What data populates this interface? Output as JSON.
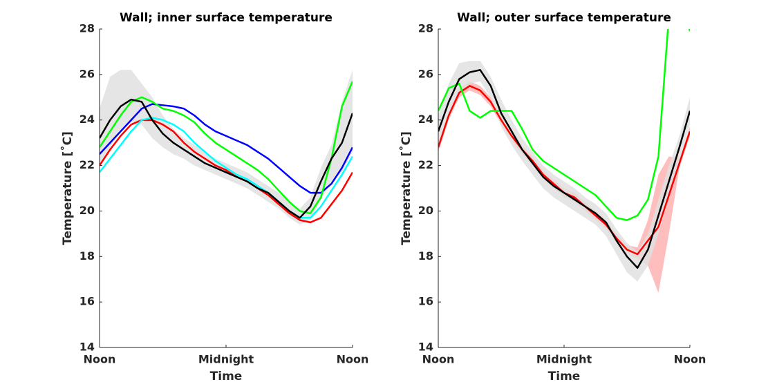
{
  "chart_data": [
    {
      "type": "line",
      "title": "Wall; inner surface temperature",
      "xlabel": "Time",
      "ylabel": "Temperature [˚C]",
      "x": [
        0,
        1,
        2,
        3,
        4,
        5,
        6,
        7,
        8,
        9,
        10,
        11,
        12,
        13,
        14,
        15,
        16,
        17,
        18,
        19,
        20,
        21,
        22,
        23,
        24
      ],
      "xlim": [
        0,
        24
      ],
      "xticks": [
        {
          "value": 0,
          "label": "Noon"
        },
        {
          "value": 12,
          "label": "Midnight"
        },
        {
          "value": 24,
          "label": "Noon"
        }
      ],
      "ylim": [
        14,
        28
      ],
      "yticks": [
        14,
        16,
        18,
        20,
        22,
        24,
        26,
        28
      ],
      "series": [
        {
          "color": "#ff0000",
          "values": [
            22.0,
            22.7,
            23.3,
            23.8,
            24.0,
            24.0,
            23.8,
            23.5,
            23.0,
            22.6,
            22.3,
            22.0,
            21.8,
            21.5,
            21.3,
            21.0,
            20.7,
            20.3,
            19.9,
            19.6,
            19.5,
            19.7,
            20.3,
            20.9,
            21.7
          ]
        },
        {
          "color": "#00ffff",
          "values": [
            21.7,
            22.3,
            22.9,
            23.5,
            24.0,
            24.1,
            24.0,
            23.8,
            23.5,
            23.0,
            22.6,
            22.2,
            21.9,
            21.6,
            21.4,
            21.1,
            20.8,
            20.4,
            20.0,
            19.7,
            19.7,
            20.2,
            20.9,
            21.6,
            22.4
          ]
        },
        {
          "color": "#0000ff",
          "values": [
            22.5,
            23.0,
            23.5,
            24.0,
            24.5,
            24.7,
            24.65,
            24.6,
            24.5,
            24.2,
            23.8,
            23.5,
            23.3,
            23.1,
            22.9,
            22.6,
            22.3,
            21.9,
            21.5,
            21.1,
            20.8,
            20.8,
            21.2,
            21.9,
            22.8
          ]
        },
        {
          "color": "#00ff00",
          "values": [
            22.8,
            23.5,
            24.2,
            24.8,
            25.0,
            24.8,
            24.5,
            24.4,
            24.2,
            23.9,
            23.4,
            23.0,
            22.7,
            22.4,
            22.1,
            21.8,
            21.4,
            20.9,
            20.4,
            20.0,
            19.9,
            20.6,
            22.3,
            24.6,
            25.7
          ]
        },
        {
          "color": "#000000",
          "band_color": "#e0e0e0",
          "upper": [
            24.5,
            25.9,
            26.2,
            26.2,
            25.6,
            25.0,
            24.2,
            23.6,
            23.2,
            22.9,
            22.6,
            22.3,
            22.1,
            21.9,
            21.7,
            21.4,
            21.1,
            20.8,
            20.4,
            20.1,
            20.6,
            21.9,
            22.9,
            24.8,
            26.2
          ],
          "lower": [
            22.0,
            22.8,
            23.5,
            23.9,
            23.8,
            23.2,
            22.8,
            22.5,
            22.3,
            22.0,
            21.8,
            21.6,
            21.4,
            21.2,
            21.0,
            20.7,
            20.4,
            20.1,
            19.7,
            19.4,
            19.6,
            20.5,
            21.3,
            21.7,
            22.6
          ],
          "values": [
            23.2,
            24.0,
            24.6,
            24.9,
            24.8,
            24.0,
            23.4,
            23.0,
            22.7,
            22.4,
            22.1,
            21.9,
            21.7,
            21.5,
            21.3,
            21.0,
            20.8,
            20.4,
            20.0,
            19.7,
            20.2,
            21.3,
            22.3,
            23.0,
            24.3
          ]
        }
      ]
    },
    {
      "type": "line",
      "title": "Wall; outer surface temperature",
      "xlabel": "Time",
      "ylabel": "Temperature [˚C]",
      "x": [
        0,
        1,
        2,
        3,
        4,
        5,
        6,
        7,
        8,
        9,
        10,
        11,
        12,
        13,
        14,
        15,
        16,
        17,
        18,
        19,
        20,
        21,
        22,
        23,
        24
      ],
      "xlim": [
        0,
        24
      ],
      "xticks": [
        {
          "value": 0,
          "label": "Noon"
        },
        {
          "value": 12,
          "label": "Midnight"
        },
        {
          "value": 24,
          "label": "Noon"
        }
      ],
      "ylim": [
        14,
        28
      ],
      "yticks": [
        14,
        16,
        18,
        20,
        22,
        24,
        26,
        28
      ],
      "series": [
        {
          "color": "#ff0000",
          "band_color": "#ffb3b3",
          "upper": [
            23.0,
            24.4,
            25.4,
            25.7,
            25.5,
            25.0,
            24.2,
            23.5,
            22.9,
            22.4,
            21.8,
            21.4,
            21.0,
            20.8,
            20.4,
            20.0,
            19.6,
            19.0,
            18.5,
            18.4,
            19.6,
            21.6,
            22.4,
            22.3,
            23.7
          ],
          "lower": [
            22.6,
            24.0,
            25.0,
            25.3,
            25.1,
            24.6,
            23.8,
            23.1,
            22.5,
            22.0,
            21.4,
            21.0,
            20.6,
            20.4,
            20.0,
            19.6,
            19.2,
            18.6,
            18.1,
            17.9,
            17.6,
            16.4,
            19.0,
            21.9,
            23.3
          ],
          "values": [
            22.8,
            24.2,
            25.2,
            25.5,
            25.3,
            24.8,
            24.0,
            23.3,
            22.7,
            22.2,
            21.6,
            21.2,
            20.8,
            20.6,
            20.2,
            19.8,
            19.4,
            18.8,
            18.3,
            18.1,
            18.7,
            19.3,
            20.7,
            22.1,
            23.5
          ]
        },
        {
          "color": "#00ff00",
          "values": [
            24.4,
            25.4,
            25.6,
            24.4,
            24.1,
            24.4,
            24.4,
            24.4,
            23.6,
            22.7,
            22.2,
            21.9,
            21.6,
            21.3,
            21.0,
            20.7,
            20.2,
            19.7,
            19.6,
            19.8,
            20.5,
            22.4,
            28.6,
            30,
            27.9
          ]
        },
        {
          "color": "#000000",
          "band_color": "#e0e0e0",
          "upper": [
            24.2,
            25.6,
            26.5,
            26.6,
            26.6,
            25.9,
            24.9,
            24.0,
            23.2,
            22.6,
            22.0,
            21.6,
            21.3,
            21.0,
            20.6,
            20.3,
            19.9,
            19.2,
            18.6,
            18.2,
            19.0,
            20.5,
            22.0,
            23.3,
            25.0
          ],
          "lower": [
            22.8,
            24.0,
            25.1,
            25.6,
            25.7,
            25.0,
            23.7,
            22.9,
            22.2,
            21.6,
            21.0,
            20.6,
            20.3,
            20.0,
            19.7,
            19.4,
            18.9,
            18.1,
            17.3,
            16.9,
            17.6,
            19.0,
            20.6,
            22.2,
            23.8
          ],
          "values": [
            23.5,
            24.8,
            25.8,
            26.1,
            26.2,
            25.5,
            24.3,
            23.5,
            22.7,
            22.1,
            21.5,
            21.1,
            20.8,
            20.5,
            20.2,
            19.9,
            19.5,
            18.7,
            18.0,
            17.5,
            18.3,
            19.8,
            21.3,
            22.8,
            24.4
          ]
        }
      ]
    }
  ]
}
